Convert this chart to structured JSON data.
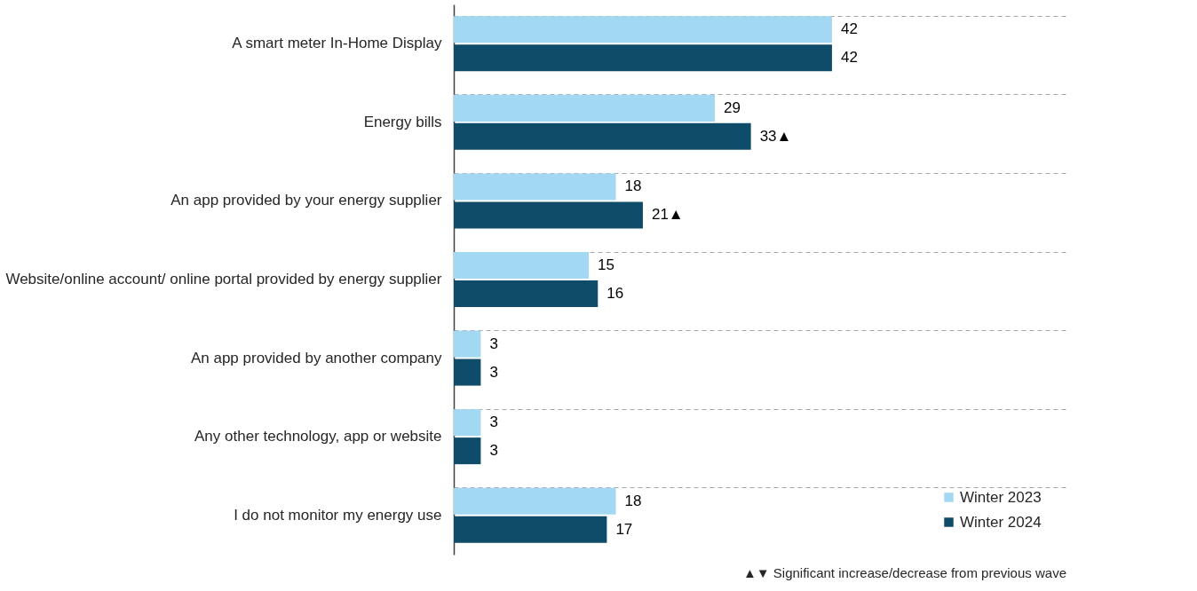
{
  "chart_data": {
    "type": "bar",
    "orientation": "horizontal",
    "categories": [
      "A smart meter In-Home Display",
      "Energy bills",
      "An app provided by your energy supplier",
      "Website/online account/ online portal provided by energy supplier",
      "An app provided by another company",
      "Any other technology, app or website",
      "I do not monitor my energy use"
    ],
    "series": [
      {
        "name": "Winter 2023",
        "color": "#a3d8f3",
        "values": [
          42,
          29,
          18,
          15,
          3,
          3,
          18
        ]
      },
      {
        "name": "Winter 2024",
        "color": "#0f4c69",
        "values": [
          42,
          33,
          21,
          16,
          3,
          3,
          17
        ],
        "value_labels": [
          "42",
          "33▲",
          "21▲",
          "16",
          "3",
          "3",
          "17"
        ]
      }
    ],
    "data_labels": true,
    "grid": "y",
    "legend": "bottom right",
    "tick_labels": "y",
    "annotations": [
      "▲▼ Significant increase/decrease from previous wave"
    ]
  }
}
